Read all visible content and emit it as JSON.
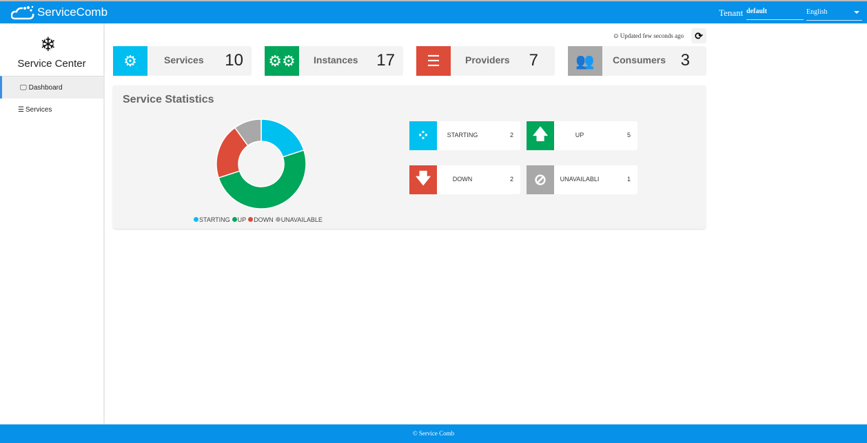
{
  "header": {
    "brand": "ServiceComb",
    "tenant_label": "Tenant",
    "tenant_value": "default",
    "language": "English"
  },
  "sidebar": {
    "title": "Service Center",
    "items": [
      {
        "label": "Dashboard",
        "active": true
      },
      {
        "label": "Services"
      }
    ]
  },
  "toolbar": {
    "updated": "Updated few seconds ago"
  },
  "cards": [
    {
      "label": "Services",
      "value": "10",
      "color": "#00bef0"
    },
    {
      "label": "Instances",
      "value": "17",
      "color": "#00a65a"
    },
    {
      "label": "Providers",
      "value": "7",
      "color": "#dd4b39"
    },
    {
      "label": "Consumers",
      "value": "3",
      "color": "#a8a8a8"
    }
  ],
  "stats": {
    "title": "Service Statistics",
    "items": [
      {
        "label": "STARTING",
        "value": "2",
        "color": "#00c0ef"
      },
      {
        "label": "UP",
        "value": "5",
        "color": "#00a65a"
      },
      {
        "label": "DOWN",
        "value": "2",
        "color": "#dd4b39"
      },
      {
        "label": "UNAVAILABLI",
        "value": "1",
        "color": "#a8a8a8"
      }
    ]
  },
  "chart_data": {
    "type": "pie",
    "donut": true,
    "categories": [
      "STARTING",
      "UP",
      "DOWN",
      "UNAVAILABLE"
    ],
    "values": [
      2,
      5,
      2,
      1
    ],
    "colors": [
      "#00c0ef",
      "#00a65a",
      "#dd4b39",
      "#a8a8a8"
    ],
    "legend": "bottom"
  },
  "footer": {
    "text": "© Service Comb"
  }
}
